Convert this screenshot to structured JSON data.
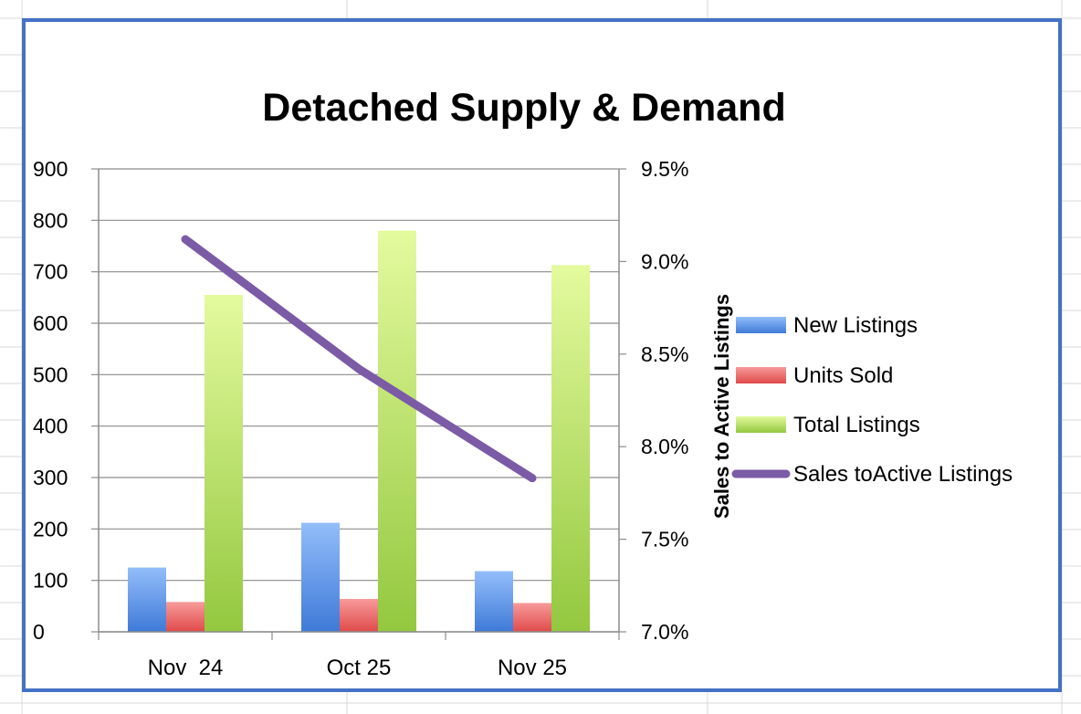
{
  "chart_data": {
    "type": "bar",
    "title": "Detached Supply & Demand",
    "categories": [
      "Nov  24",
      "Oct 25",
      "Nov 25"
    ],
    "series": [
      {
        "name": "New Listings",
        "type": "bar",
        "axis": "left",
        "color": "#4f8ce6",
        "values": [
          125,
          212,
          118
        ]
      },
      {
        "name": "Units Sold",
        "type": "bar",
        "axis": "left",
        "color": "#f06262",
        "values": [
          58,
          64,
          56
        ]
      },
      {
        "name": "Total Listings",
        "type": "bar",
        "axis": "left",
        "color": "#b4e36a",
        "values": [
          655,
          780,
          713
        ]
      },
      {
        "name": "Sales toActive Listings",
        "type": "line",
        "axis": "right",
        "color": "#7b5aa6",
        "values": [
          9.12,
          8.42,
          7.83
        ]
      }
    ],
    "y_left": {
      "ylim": [
        0,
        900
      ],
      "ticks": [
        "0",
        "100",
        "200",
        "300",
        "400",
        "500",
        "600",
        "700",
        "800",
        "900"
      ]
    },
    "y_right": {
      "label": "Sales to Active Listings",
      "ylim": [
        7.0,
        9.5
      ],
      "ticks": [
        "7.0%",
        "7.5%",
        "8.0%",
        "8.5%",
        "9.0%",
        "9.5%"
      ]
    },
    "grid": true,
    "legend_position": "right"
  }
}
